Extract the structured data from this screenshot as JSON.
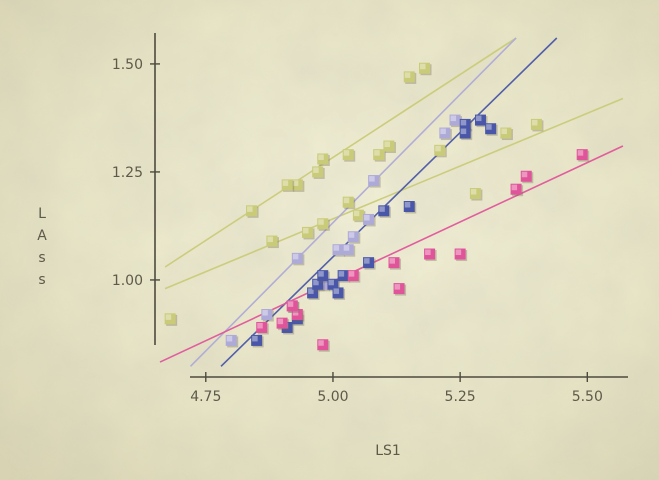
{
  "chart_data": {
    "type": "scatter",
    "title": "",
    "xlabel": "LS1",
    "ylabel": "LAss",
    "xlim": [
      4.66,
      5.58
    ],
    "ylim": [
      0.78,
      1.56
    ],
    "x_ticks": [
      {
        "value": 4.75,
        "label": "4.75"
      },
      {
        "value": 5.0,
        "label": "5.00"
      },
      {
        "value": 5.25,
        "label": "5.25"
      },
      {
        "value": 5.5,
        "label": "5.50"
      }
    ],
    "y_ticks": [
      {
        "value": 1.0,
        "label": "1.00"
      },
      {
        "value": 1.25,
        "label": "1.25"
      },
      {
        "value": 1.5,
        "label": "1.50"
      }
    ],
    "grid": false,
    "legend": "none",
    "series": [
      {
        "color": "#c9cb78",
        "points": [
          [
            4.68,
            0.91
          ],
          [
            4.88,
            1.09
          ],
          [
            4.84,
            1.16
          ],
          [
            4.93,
            1.22
          ],
          [
            4.91,
            1.22
          ],
          [
            4.97,
            1.25
          ],
          [
            4.98,
            1.28
          ],
          [
            4.95,
            1.11
          ],
          [
            4.98,
            1.13
          ],
          [
            5.03,
            1.29
          ],
          [
            5.03,
            1.18
          ],
          [
            5.05,
            1.15
          ],
          [
            5.09,
            1.29
          ],
          [
            5.11,
            1.31
          ],
          [
            5.15,
            1.47
          ],
          [
            5.18,
            1.49
          ],
          [
            5.21,
            1.3
          ],
          [
            5.28,
            1.2
          ],
          [
            5.34,
            1.34
          ],
          [
            5.4,
            1.36
          ]
        ],
        "fit": [
          [
            4.67,
            0.98
          ],
          [
            5.57,
            1.42
          ]
        ]
      },
      {
        "color": "#c9cb78",
        "points": [],
        "fit": [
          [
            4.67,
            1.03
          ],
          [
            5.36,
            1.56
          ]
        ]
      },
      {
        "color": "#aeaad8",
        "points": [
          [
            4.8,
            0.86
          ],
          [
            4.87,
            0.92
          ],
          [
            4.92,
            0.94
          ],
          [
            4.93,
            1.05
          ],
          [
            4.98,
            0.99
          ],
          [
            5.01,
            1.07
          ],
          [
            5.03,
            1.07
          ],
          [
            5.04,
            1.1
          ],
          [
            5.07,
            1.14
          ],
          [
            5.08,
            1.23
          ],
          [
            5.22,
            1.34
          ],
          [
            5.24,
            1.37
          ]
        ],
        "fit": [
          [
            4.72,
            0.8
          ],
          [
            5.36,
            1.56
          ]
        ]
      },
      {
        "color": "#4a57a8",
        "points": [
          [
            4.85,
            0.86
          ],
          [
            4.91,
            0.89
          ],
          [
            4.93,
            0.91
          ],
          [
            4.96,
            0.97
          ],
          [
            4.97,
            0.99
          ],
          [
            4.98,
            1.01
          ],
          [
            5.0,
            0.99
          ],
          [
            5.01,
            0.97
          ],
          [
            5.02,
            1.01
          ],
          [
            5.07,
            1.04
          ],
          [
            5.1,
            1.16
          ],
          [
            5.15,
            1.17
          ],
          [
            5.26,
            1.36
          ],
          [
            5.29,
            1.37
          ],
          [
            5.31,
            1.35
          ],
          [
            5.26,
            1.34
          ]
        ],
        "fit": [
          [
            4.78,
            0.8
          ],
          [
            5.44,
            1.56
          ]
        ]
      },
      {
        "color": "#e0559a",
        "points": [
          [
            4.86,
            0.89
          ],
          [
            4.9,
            0.9
          ],
          [
            4.93,
            0.92
          ],
          [
            4.92,
            0.94
          ],
          [
            4.98,
            0.85
          ],
          [
            5.04,
            1.01
          ],
          [
            5.12,
            1.04
          ],
          [
            5.13,
            0.98
          ],
          [
            5.19,
            1.06
          ],
          [
            5.25,
            1.06
          ],
          [
            5.36,
            1.21
          ],
          [
            5.38,
            1.24
          ],
          [
            5.49,
            1.29
          ]
        ],
        "fit": [
          [
            4.66,
            0.81
          ],
          [
            5.57,
            1.31
          ]
        ]
      }
    ]
  }
}
